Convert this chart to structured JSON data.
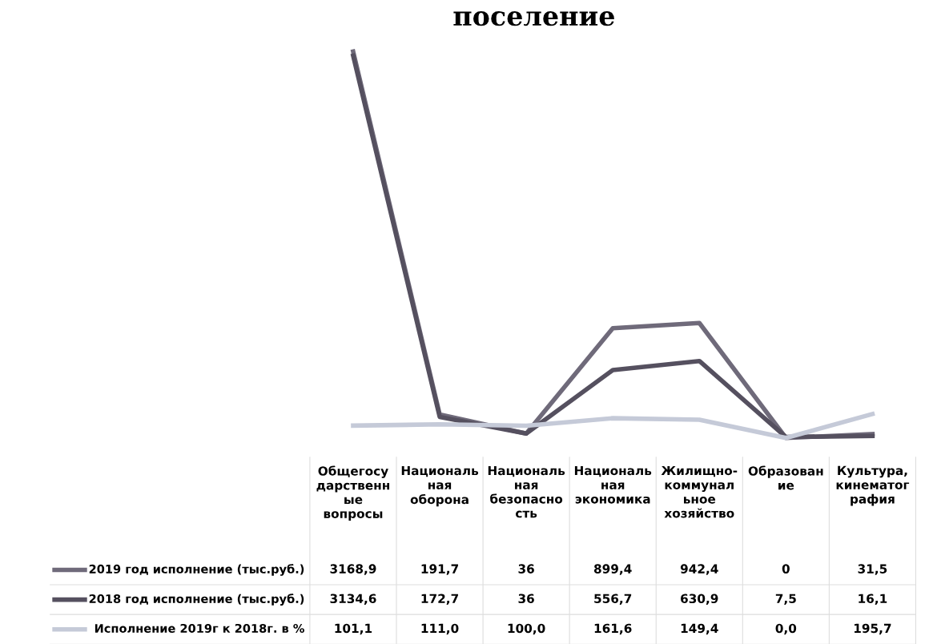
{
  "chart_data": {
    "type": "line",
    "title": "поселение",
    "categories": [
      "Общегосу\nдарственн\nые\nвопросы",
      "Националь\nная\nоборона",
      "Националь\nная\nбезопасно\nсть",
      "Националь\nная\nэкономика",
      "Жилищно-\nкоммунал\nьное\nхозяйство",
      "Образован\nие",
      "Культура,\nкинематог\nрафия"
    ],
    "series": [
      {
        "name": "2019 год исполнение (тыс.руб.)",
        "color": "#6f6a7a",
        "values": [
          3168.9,
          191.7,
          36,
          899.4,
          942.4,
          0,
          31.5
        ],
        "value_labels": [
          "3168,9",
          "191,7",
          "36",
          "899,4",
          "942,4",
          "0",
          "31,5"
        ]
      },
      {
        "name": "2018 год исполнение (тыс.руб.)",
        "color": "#55505f",
        "values": [
          3134.6,
          172.7,
          36,
          556.7,
          630.9,
          7.5,
          16.1
        ],
        "value_labels": [
          "3134,6",
          "172,7",
          "36",
          "556,7",
          "630,9",
          "7,5",
          "16,1"
        ]
      },
      {
        "name": "Исполнение 2019г к 2018г. в %",
        "color": "#c5cad8",
        "values": [
          101.1,
          111.0,
          100.0,
          161.6,
          149.4,
          0.0,
          195.7
        ],
        "value_labels": [
          "101,1",
          "111,0",
          "100,0",
          "161,6",
          "149,4",
          "0,0",
          "195,7"
        ]
      }
    ],
    "legend": "bottom"
  }
}
